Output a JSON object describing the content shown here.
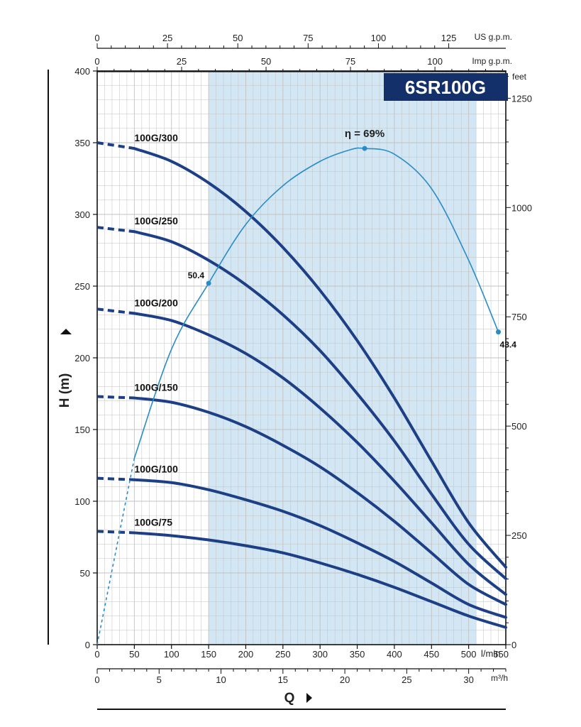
{
  "chart_data": {
    "type": "line",
    "title": "6SR100G",
    "x": [
      0,
      50,
      100,
      150,
      200,
      250,
      300,
      350,
      400,
      450,
      500,
      550
    ],
    "x_tick_labels": [
      "0",
      "50",
      "100",
      "150",
      "200",
      "250",
      "300",
      "350",
      "400",
      "450",
      "500",
      "550"
    ],
    "x_unit": "l/min",
    "xlim": [
      0,
      550
    ],
    "ylabel": "H (m)",
    "ylim": [
      0,
      400
    ],
    "y_ticks": [
      "0",
      "50",
      "100",
      "150",
      "200",
      "250",
      "300",
      "350",
      "400"
    ],
    "xlabel": "Q",
    "grid": true,
    "shaded_range": [
      150,
      510
    ],
    "secondary_axes": {
      "us_gpm": {
        "unit": "US g.p.m.",
        "ticks": [
          "0",
          "25",
          "50",
          "75",
          "100",
          "125"
        ]
      },
      "imp_gpm": {
        "unit": "Imp g.p.m.",
        "ticks": [
          "0",
          "25",
          "50",
          "75",
          "100"
        ]
      },
      "feet": {
        "unit": "feet",
        "ticks": [
          "0",
          "250",
          "500",
          "750",
          "1000",
          "1250"
        ]
      },
      "m3h": {
        "unit": "m³/h",
        "ticks": [
          "0",
          "5",
          "10",
          "15",
          "20",
          "25",
          "30"
        ]
      }
    },
    "series": [
      {
        "name": "100G/300",
        "x": [
          0,
          50,
          100,
          150,
          200,
          250,
          300,
          350,
          400,
          450,
          500,
          550
        ],
        "values": [
          350,
          346,
          337,
          322,
          302,
          277,
          247,
          212,
          172,
          128,
          85,
          54
        ],
        "dashed_x_to": 50
      },
      {
        "name": "100G/250",
        "x": [
          0,
          50,
          100,
          150,
          200,
          250,
          300,
          350,
          400,
          450,
          500,
          550
        ],
        "values": [
          291,
          288,
          281,
          268,
          251,
          230,
          205,
          175,
          142,
          105,
          70,
          46
        ],
        "dashed_x_to": 50
      },
      {
        "name": "100G/200",
        "x": [
          0,
          50,
          100,
          150,
          200,
          250,
          300,
          350,
          400,
          450,
          500,
          550
        ],
        "values": [
          234,
          231,
          226,
          216,
          203,
          186,
          165,
          141,
          114,
          85,
          56,
          35
        ],
        "dashed_x_to": 50
      },
      {
        "name": "100G/150",
        "x": [
          0,
          50,
          100,
          150,
          200,
          250,
          300,
          350,
          400,
          450,
          500,
          550
        ],
        "values": [
          173,
          172,
          169,
          162,
          152,
          139,
          124,
          106,
          86,
          64,
          42,
          28
        ],
        "dashed_x_to": 50
      },
      {
        "name": "100G/100",
        "x": [
          0,
          50,
          100,
          150,
          200,
          250,
          300,
          350,
          400,
          450,
          500,
          550
        ],
        "values": [
          116,
          115,
          113,
          108,
          101,
          93,
          83,
          71,
          58,
          43,
          28,
          19
        ],
        "dashed_x_to": 50
      },
      {
        "name": "100G/75",
        "x": [
          0,
          50,
          100,
          150,
          200,
          250,
          300,
          350,
          400,
          450,
          500,
          550
        ],
        "values": [
          79,
          78,
          76,
          73,
          69,
          64,
          57,
          49,
          40,
          30,
          20,
          12
        ],
        "dashed_x_to": 50
      }
    ],
    "efficiency_curve": {
      "label": "η = 69%",
      "x": [
        0,
        50,
        100,
        150,
        200,
        250,
        300,
        340,
        360,
        400,
        450,
        500,
        540
      ],
      "values": [
        0,
        130,
        206,
        252,
        293,
        320,
        337,
        345,
        346,
        342,
        318,
        268,
        218
      ],
      "dashed_x_to": 50,
      "points": [
        {
          "label": "50.4",
          "x": 150,
          "y": 252
        },
        {
          "label": "",
          "x": 360,
          "y": 346
        },
        {
          "label": "43.4",
          "x": 540,
          "y": 218
        }
      ]
    }
  },
  "colors": {
    "curve": "#1c3f86",
    "efficiency": "#2a8cc6",
    "shade": "#d3e6f4",
    "grid": "#c2c2c2",
    "badge": "#13306a"
  }
}
